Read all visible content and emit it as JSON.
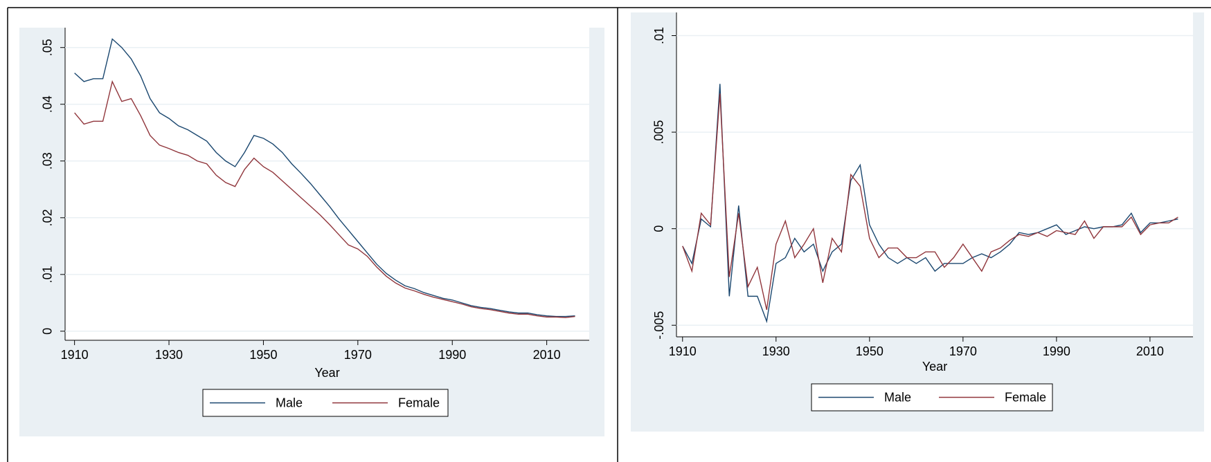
{
  "chart_data": [
    {
      "type": "line",
      "x_label": "Year",
      "x": [
        1910,
        1912,
        1914,
        1916,
        1918,
        1920,
        1922,
        1924,
        1926,
        1928,
        1930,
        1932,
        1934,
        1936,
        1938,
        1940,
        1942,
        1944,
        1946,
        1948,
        1950,
        1952,
        1954,
        1956,
        1958,
        1960,
        1962,
        1964,
        1966,
        1968,
        1970,
        1972,
        1974,
        1976,
        1978,
        1980,
        1982,
        1984,
        1986,
        1988,
        1990,
        1992,
        1994,
        1996,
        1998,
        2000,
        2002,
        2004,
        2006,
        2008,
        2010,
        2012,
        2014,
        2016
      ],
      "series": [
        {
          "name": "Male",
          "color": "#1a476f",
          "values": [
            0.0455,
            0.044,
            0.0445,
            0.0445,
            0.0515,
            0.05,
            0.048,
            0.045,
            0.041,
            0.0385,
            0.0375,
            0.0362,
            0.0355,
            0.0345,
            0.0335,
            0.0315,
            0.03,
            0.029,
            0.0315,
            0.0345,
            0.034,
            0.033,
            0.0315,
            0.0295,
            0.0278,
            0.026,
            0.024,
            0.022,
            0.0198,
            0.0178,
            0.0158,
            0.0138,
            0.0118,
            0.0102,
            0.009,
            0.008,
            0.0075,
            0.0068,
            0.0063,
            0.0058,
            0.0055,
            0.005,
            0.0045,
            0.0042,
            0.004,
            0.0037,
            0.0034,
            0.0032,
            0.0032,
            0.0029,
            0.0027,
            0.0026,
            0.0026,
            0.0027
          ]
        },
        {
          "name": "Female",
          "color": "#90353b",
          "values": [
            0.0385,
            0.0365,
            0.037,
            0.037,
            0.044,
            0.0405,
            0.041,
            0.038,
            0.0345,
            0.0328,
            0.0322,
            0.0315,
            0.031,
            0.03,
            0.0295,
            0.0275,
            0.0262,
            0.0255,
            0.0285,
            0.0305,
            0.029,
            0.028,
            0.0265,
            0.025,
            0.0235,
            0.022,
            0.0205,
            0.0188,
            0.017,
            0.0152,
            0.0145,
            0.0132,
            0.0113,
            0.0097,
            0.0085,
            0.0076,
            0.0071,
            0.0065,
            0.006,
            0.0056,
            0.0052,
            0.0048,
            0.0043,
            0.004,
            0.0038,
            0.0035,
            0.0032,
            0.003,
            0.003,
            0.0027,
            0.0025,
            0.0025,
            0.0024,
            0.0026
          ]
        }
      ],
      "xlim": [
        1908,
        2019
      ],
      "xticks": [
        1910,
        1930,
        1950,
        1970,
        1990,
        2010
      ],
      "ylim": [
        -0.0016,
        0.0535
      ],
      "yticks": [
        0,
        {
          "value": 0.01,
          "label": ".01"
        },
        {
          "value": 0.02,
          "label": ".02"
        },
        {
          "value": 0.03,
          "label": ".03"
        },
        {
          "value": 0.04,
          "label": ".04"
        },
        {
          "value": 0.05,
          "label": ".05"
        }
      ],
      "grid": true
    },
    {
      "type": "line",
      "x_label": "Year",
      "x": [
        1910,
        1912,
        1914,
        1916,
        1918,
        1920,
        1922,
        1924,
        1926,
        1928,
        1930,
        1932,
        1934,
        1936,
        1938,
        1940,
        1942,
        1944,
        1946,
        1948,
        1950,
        1952,
        1954,
        1956,
        1958,
        1960,
        1962,
        1964,
        1966,
        1968,
        1970,
        1972,
        1974,
        1976,
        1978,
        1980,
        1982,
        1984,
        1986,
        1988,
        1990,
        1992,
        1994,
        1996,
        1998,
        2000,
        2002,
        2004,
        2006,
        2008,
        2010,
        2012,
        2014,
        2016
      ],
      "series": [
        {
          "name": "Male",
          "color": "#1a476f",
          "values": [
            -0.0009,
            -0.0018,
            0.0005,
            0.0001,
            0.0075,
            -0.0035,
            0.0012,
            -0.0035,
            -0.0035,
            -0.0048,
            -0.0018,
            -0.0015,
            -0.0005,
            -0.0012,
            -0.0008,
            -0.0022,
            -0.0012,
            -0.0008,
            0.0025,
            0.0033,
            0.0002,
            -0.0008,
            -0.0015,
            -0.0018,
            -0.0015,
            -0.0018,
            -0.0015,
            -0.0022,
            -0.0018,
            -0.0018,
            -0.0018,
            -0.0015,
            -0.0013,
            -0.0015,
            -0.0012,
            -0.0008,
            -0.0002,
            -0.0003,
            -0.0002,
            0,
            0.0002,
            -0.0003,
            -0.0001,
            0.0001,
            0,
            0.0001,
            0.0001,
            0.0002,
            0.0008,
            -0.0002,
            0.0003,
            0.0003,
            0.0004,
            0.0005
          ]
        },
        {
          "name": "Female",
          "color": "#90353b",
          "values": [
            -0.0009,
            -0.0022,
            0.0008,
            0.0002,
            0.007,
            -0.0025,
            0.0008,
            -0.003,
            -0.002,
            -0.0042,
            -0.0008,
            0.0004,
            -0.0015,
            -0.0008,
            0,
            -0.0028,
            -0.0005,
            -0.0012,
            0.0028,
            0.0022,
            -0.0005,
            -0.0015,
            -0.001,
            -0.001,
            -0.0015,
            -0.0015,
            -0.0012,
            -0.0012,
            -0.002,
            -0.0015,
            -0.0008,
            -0.0015,
            -0.0022,
            -0.0012,
            -0.001,
            -0.0006,
            -0.0003,
            -0.0004,
            -0.0002,
            -0.0004,
            -0.0001,
            -0.0002,
            -0.0003,
            0.0004,
            -0.0005,
            0.0001,
            0.0001,
            0.0001,
            0.0006,
            -0.0003,
            0.0002,
            0.0003,
            0.0003,
            0.0006
          ]
        }
      ],
      "xlim": [
        1908.7,
        2019.2
      ],
      "xticks": [
        1910,
        1930,
        1950,
        1970,
        1990,
        2010
      ],
      "ylim": [
        -0.0056,
        0.0112
      ],
      "yticks": [
        {
          "value": -0.005,
          "label": "-.005"
        },
        0,
        {
          "value": 0.005,
          "label": ".005"
        },
        {
          "value": 0.01,
          "label": ".01"
        }
      ],
      "grid": true
    }
  ]
}
